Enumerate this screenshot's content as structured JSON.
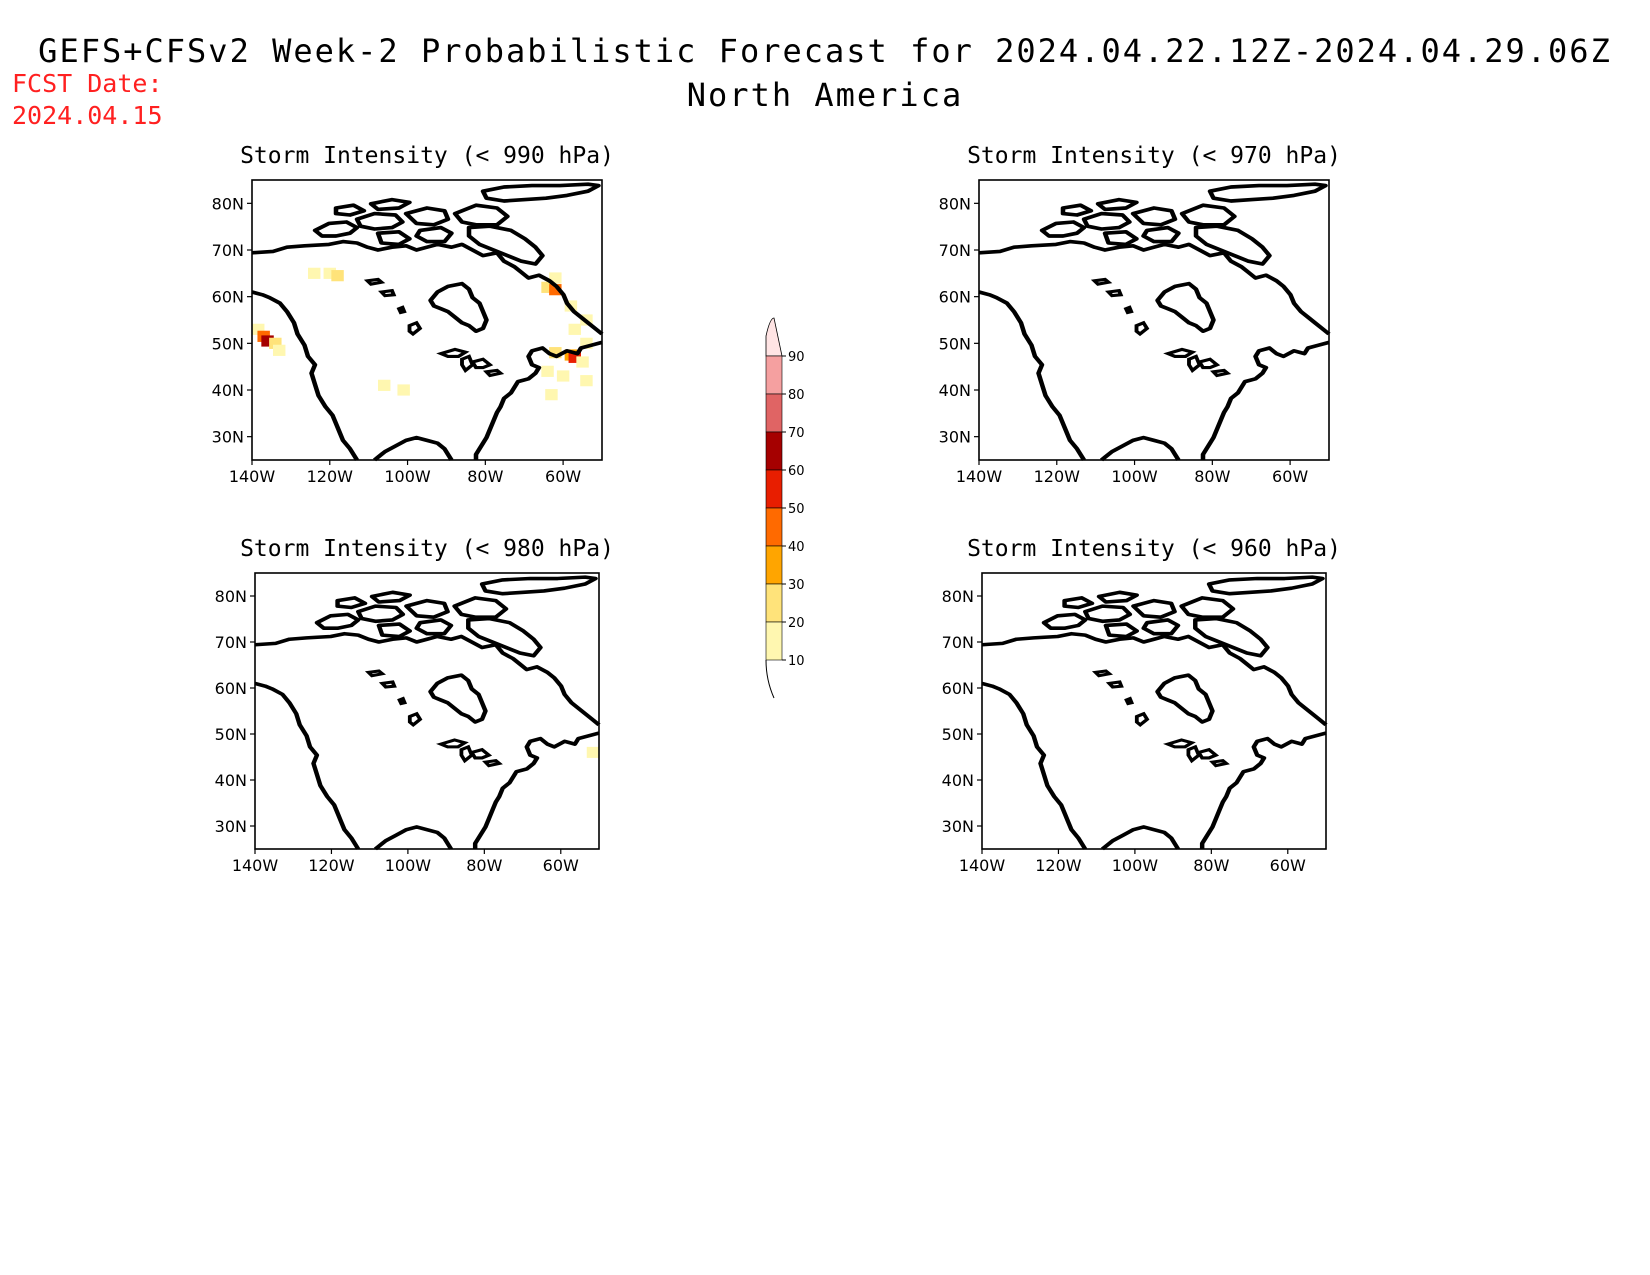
{
  "header": {
    "title": "GEFS+CFSv2 Week-2 Probabilistic Forecast for 2024.04.22.12Z-2024.04.29.06Z",
    "subtitle": "North America",
    "fcst_label": "FCST Date:",
    "fcst_date": "2024.04.15"
  },
  "colors": {
    "coastline": "#000000",
    "fcst_text": "#ff2020"
  },
  "colorbar": {
    "levels": [
      "10",
      "20",
      "30",
      "40",
      "50",
      "60",
      "70",
      "80",
      "90"
    ],
    "colors": [
      "#fff7b0",
      "#ffe37a",
      "#ffa500",
      "#ff6a00",
      "#e81e00",
      "#a50000",
      "#e06464",
      "#f5a0a0",
      "#ffe4e4"
    ]
  },
  "panels": [
    {
      "title": "Storm Intensity (< 990 hPa)",
      "lat_ticks": [
        "80N",
        "70N",
        "60N",
        "50N",
        "40N",
        "30N"
      ],
      "lon_ticks": [
        "140W",
        "120W",
        "100W",
        "80W",
        "60W"
      ],
      "extent": {
        "lon": [
          -140,
          -50
        ],
        "lat": [
          25,
          85
        ]
      },
      "probability_cells": [
        {
          "lon": -124,
          "lat": 65,
          "p": 10
        },
        {
          "lon": -120,
          "lat": 65,
          "p": 15
        },
        {
          "lon": -118,
          "lat": 64.5,
          "p": 25
        },
        {
          "lon": -139,
          "lat": 53,
          "p": 15
        },
        {
          "lon": -137,
          "lat": 51.5,
          "p": 45
        },
        {
          "lon": -136,
          "lat": 50.5,
          "p": 65
        },
        {
          "lon": -134,
          "lat": 50,
          "p": 20
        },
        {
          "lon": -133,
          "lat": 48.5,
          "p": 12
        },
        {
          "lon": -62,
          "lat": 64,
          "p": 12
        },
        {
          "lon": -64,
          "lat": 62,
          "p": 25
        },
        {
          "lon": -62,
          "lat": 61.5,
          "p": 40
        },
        {
          "lon": -58,
          "lat": 58,
          "p": 12
        },
        {
          "lon": -54,
          "lat": 55,
          "p": 12
        },
        {
          "lon": -57,
          "lat": 53,
          "p": 15
        },
        {
          "lon": -54,
          "lat": 50,
          "p": 12
        },
        {
          "lon": -62,
          "lat": 48,
          "p": 20
        },
        {
          "lon": -58,
          "lat": 47.5,
          "p": 30
        },
        {
          "lon": -57,
          "lat": 47,
          "p": 55
        },
        {
          "lon": -55,
          "lat": 46,
          "p": 15
        },
        {
          "lon": -64,
          "lat": 44,
          "p": 12
        },
        {
          "lon": -60,
          "lat": 43,
          "p": 12
        },
        {
          "lon": -54,
          "lat": 42,
          "p": 10
        },
        {
          "lon": -63,
          "lat": 39,
          "p": 10
        },
        {
          "lon": -106,
          "lat": 41,
          "p": 10
        },
        {
          "lon": -101,
          "lat": 40,
          "p": 10
        }
      ]
    },
    {
      "title": "Storm Intensity (< 970 hPa)",
      "lat_ticks": [
        "80N",
        "70N",
        "60N",
        "50N",
        "40N",
        "30N"
      ],
      "lon_ticks": [
        "140W",
        "120W",
        "100W",
        "80W",
        "60W"
      ],
      "extent": {
        "lon": [
          -140,
          -50
        ],
        "lat": [
          25,
          85
        ]
      },
      "probability_cells": []
    },
    {
      "title": "Storm Intensity (< 980 hPa)",
      "lat_ticks": [
        "80N",
        "70N",
        "60N",
        "50N",
        "40N",
        "30N"
      ],
      "lon_ticks": [
        "140W",
        "120W",
        "100W",
        "80W",
        "60W"
      ],
      "extent": {
        "lon": [
          -140,
          -50
        ],
        "lat": [
          25,
          85
        ]
      },
      "probability_cells": [
        {
          "lon": -51,
          "lat": 46,
          "p": 12
        }
      ]
    },
    {
      "title": "Storm Intensity (< 960 hPa)",
      "lat_ticks": [
        "80N",
        "70N",
        "60N",
        "50N",
        "40N",
        "30N"
      ],
      "lon_ticks": [
        "140W",
        "120W",
        "100W",
        "80W",
        "60W"
      ],
      "extent": {
        "lon": [
          -140,
          -50
        ],
        "lat": [
          25,
          85
        ]
      },
      "probability_cells": []
    }
  ]
}
